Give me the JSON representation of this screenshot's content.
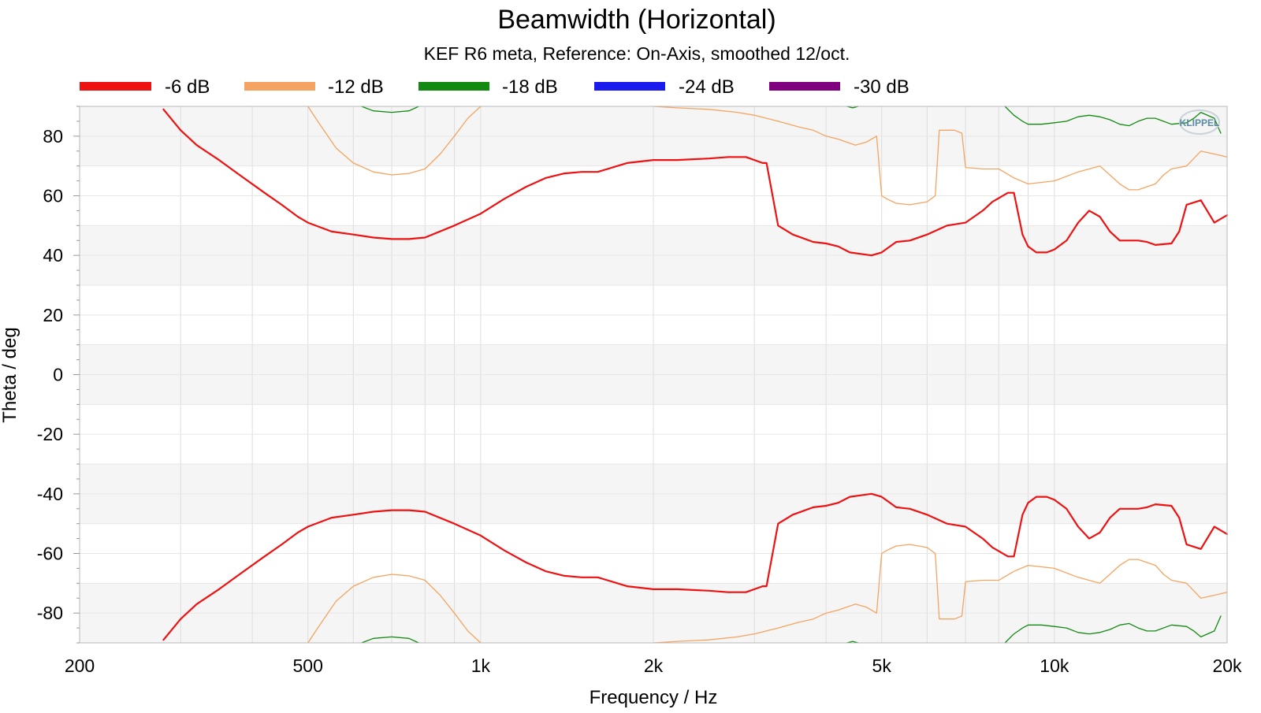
{
  "colors": {
    "minus6": "#ee1111",
    "minus12": "#f4a460",
    "minus18": "#128a12",
    "minus24": "#1a1aee",
    "minus30": "#800080"
  },
  "chart_data": {
    "type": "line",
    "title": "Beamwidth (Horizontal)",
    "subtitle": "KEF R6 meta, Reference: On-Axis, smoothed 12/oct.",
    "xlabel": "Frequency / Hz",
    "ylabel": "Theta / deg",
    "x_scale": "log",
    "xlim": [
      200,
      20000
    ],
    "ylim": [
      -90,
      90
    ],
    "x_ticks": [
      {
        "value": 200,
        "label": "200"
      },
      {
        "value": 500,
        "label": "500"
      },
      {
        "value": 1000,
        "label": "1k"
      },
      {
        "value": 2000,
        "label": "2k"
      },
      {
        "value": 5000,
        "label": "5k"
      },
      {
        "value": 10000,
        "label": "10k"
      },
      {
        "value": 20000,
        "label": "20k"
      }
    ],
    "y_ticks": [
      80,
      60,
      40,
      20,
      0,
      -20,
      -40,
      -60,
      -80
    ],
    "grid": true,
    "legend_position": "top",
    "logo": "KLIPPEL",
    "legend": [
      "-6 dB",
      "-12 dB",
      "-18 dB",
      "-24 dB",
      "-30 dB"
    ],
    "series": [
      {
        "name": "-6 dB",
        "color": "#ee1111",
        "symmetric": true,
        "x": [
          280,
          300,
          320,
          350,
          380,
          420,
          450,
          480,
          500,
          550,
          600,
          650,
          700,
          750,
          800,
          900,
          1000,
          1100,
          1200,
          1300,
          1400,
          1500,
          1600,
          1800,
          2000,
          2200,
          2500,
          2700,
          2900,
          3100,
          3150,
          3300,
          3500,
          3800,
          4000,
          4200,
          4400,
          4600,
          4800,
          5000,
          5300,
          5600,
          6000,
          6500,
          7000,
          7500,
          7800,
          8300,
          8500,
          8800,
          9000,
          9300,
          9700,
          10000,
          10500,
          11000,
          11500,
          12000,
          12500,
          13000,
          14000,
          14500,
          15000,
          16000,
          16500,
          17000,
          18000,
          19000,
          20000
        ],
        "y": [
          89,
          82,
          77,
          72,
          67,
          61,
          57,
          53,
          51,
          48,
          47,
          46,
          45.5,
          45.5,
          46,
          50,
          54,
          59,
          63,
          66,
          67.5,
          68,
          68,
          71,
          72,
          72,
          72.5,
          73,
          73,
          71,
          71,
          50,
          47,
          44.5,
          44,
          43,
          41,
          40.5,
          40,
          41,
          44.5,
          45,
          47,
          50,
          51,
          55,
          58,
          61,
          61,
          47,
          43,
          41,
          41,
          42,
          45,
          51,
          55,
          53,
          48,
          45,
          45,
          44.5,
          43.5,
          44,
          48,
          57,
          58.5,
          51,
          53.5
        ]
      },
      {
        "name": "-12 dB",
        "color": "#f4a460",
        "symmetric": true,
        "segments": [
          {
            "x": [
              500,
              520,
              560,
              600,
              650,
              700,
              750,
              800,
              850,
              900,
              950,
              1000
            ],
            "y": [
              90,
              85,
              76,
              71,
              68,
              67,
              67.5,
              69,
              74,
              80,
              86,
              90
            ]
          },
          {
            "x": [
              2000,
              2200,
              2500,
              2800,
              3000,
              3300,
              3600,
              3800,
              4000,
              4200,
              4500,
              4700,
              4900,
              5000,
              5100,
              5300,
              5600,
              6000,
              6200,
              6300,
              6700,
              6900,
              7000,
              7500,
              8000,
              8500,
              9000,
              9500,
              10000,
              11000,
              12000,
              13000,
              13500,
              14000,
              15000,
              15500,
              16000,
              17000,
              18000,
              19000,
              20000
            ],
            "y": [
              90,
              89.5,
              89,
              88,
              87,
              85,
              83,
              82,
              80,
              79,
              77,
              78,
              80,
              60,
              59,
              57.5,
              57,
              58,
              60,
              82,
              82,
              81,
              69.5,
              69,
              69,
              66,
              64,
              64.5,
              65,
              68,
              70,
              64,
              62,
              62,
              64,
              67,
              69,
              70,
              75,
              74,
              73
            ]
          }
        ]
      },
      {
        "name": "-18 dB",
        "color": "#128a12",
        "symmetric": true,
        "segments": [
          {
            "x": [
              620,
              650,
              700,
              750,
              780
            ],
            "y": [
              90,
              88.5,
              88,
              88.5,
              90
            ]
          },
          {
            "x": [
              4350,
              4450,
              4550
            ],
            "y": [
              90,
              89.5,
              90
            ]
          },
          {
            "x": [
              8200,
              8500,
              8800,
              9000,
              9500,
              10000,
              10500,
              11000,
              11500,
              12000,
              12500,
              13000,
              13500,
              14000,
              14500,
              15000,
              16000,
              17000,
              17500,
              18000,
              19000,
              19500
            ],
            "y": [
              90,
              87,
              85,
              84,
              84,
              84.5,
              85,
              86.5,
              87,
              86.5,
              85.5,
              84,
              83.5,
              85,
              86,
              86,
              84,
              84.5,
              86,
              88,
              86,
              81
            ]
          }
        ]
      }
    ]
  }
}
